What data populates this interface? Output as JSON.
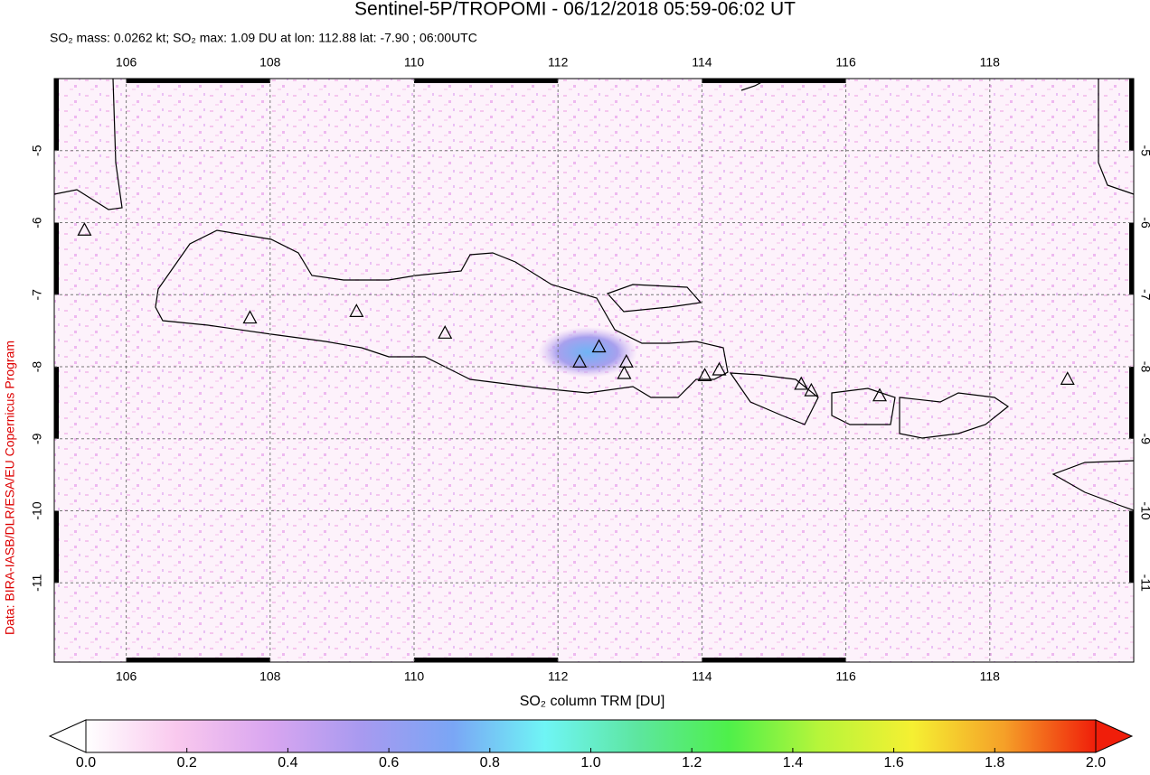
{
  "chart_data": {
    "type": "map",
    "title": "Sentinel-5P/TROPOMI - 06/12/2018 05:59-06:02 UT",
    "subtitle": "SO₂ mass: 0.0262 kt; SO₂ max: 1.09 DU at lon: 112.88 lat: -7.90 ; 06:00UTC",
    "credit": "Data: BIRA-IASB/DLR/ESA/EU Copernicus Program",
    "xlim": [
      105,
      120
    ],
    "ylim": [
      -12.1,
      -4
    ],
    "xticks": [
      106,
      108,
      110,
      112,
      114,
      116,
      118
    ],
    "yticks": [
      -5,
      -6,
      -7,
      -8,
      -9,
      -10,
      -11
    ],
    "grid": true,
    "volcanoes": {
      "lon": [
        105.42,
        107.72,
        109.2,
        110.43,
        112.3,
        112.57,
        112.95,
        112.92,
        114.04,
        114.24,
        115.38,
        115.52,
        116.47,
        119.08
      ],
      "lat": [
        -6.11,
        -7.33,
        -7.24,
        -7.54,
        -7.94,
        -7.73,
        -7.94,
        -8.1,
        -8.13,
        -8.05,
        -8.25,
        -8.34,
        -8.41,
        -8.18
      ]
    },
    "colorbar": {
      "label": "SO₂ column TRM [DU]",
      "lim": [
        0,
        2
      ],
      "colors": [
        "#ffffff",
        "#f9c8ee",
        "#d9a6f0",
        "#a89af0",
        "#7aa6f5",
        "#6ff5f5",
        "#5de6a0",
        "#4ef04a",
        "#b8f53a",
        "#f5f032",
        "#f5a028",
        "#f01e0a"
      ],
      "ticks": [
        {
          "value": 0,
          "label": "0.0"
        },
        {
          "value": 0.2,
          "label": "0.2"
        },
        {
          "value": 0.4,
          "label": "0.4"
        },
        {
          "value": 0.6,
          "label": "0.6"
        },
        {
          "value": 0.8,
          "label": "0.8"
        },
        {
          "value": 1,
          "label": "1.0"
        },
        {
          "value": 1.2,
          "label": "1.2"
        },
        {
          "value": 1.4,
          "label": "1.4"
        },
        {
          "value": 1.6,
          "label": "1.6"
        },
        {
          "value": 1.8,
          "label": "1.8"
        },
        {
          "value": 2,
          "label": "2.0"
        }
      ]
    }
  }
}
